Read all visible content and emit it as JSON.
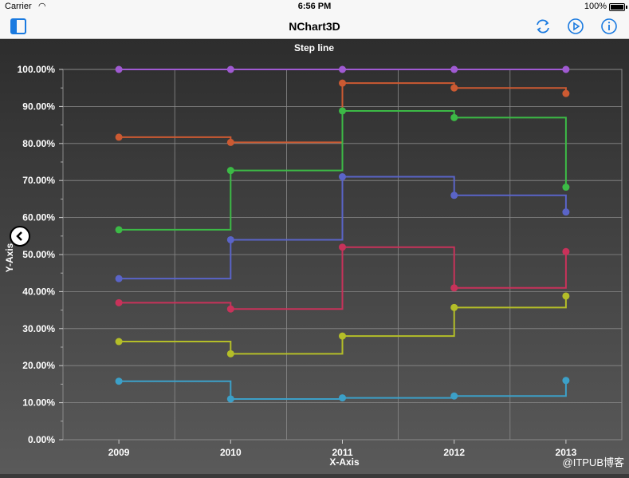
{
  "status_bar": {
    "carrier": "Carrier",
    "time": "6:56 PM",
    "battery": "100%"
  },
  "nav_bar": {
    "title": "NChart3D",
    "accent_color": "#1a7ae0",
    "left_icon": "sidebar-toggle-icon",
    "right_icons": [
      "refresh-icon",
      "play-icon",
      "info-icon"
    ]
  },
  "watermark": "@ITPUB博客",
  "chart_data": {
    "type": "line",
    "style": "step",
    "title": "Step line",
    "xlabel": "X-Axis",
    "ylabel": "Y-Axis",
    "categories": [
      "2009",
      "2010",
      "2011",
      "2012",
      "2013"
    ],
    "ylim": [
      0,
      100
    ],
    "ytick_labels": [
      "0.00%",
      "10.00%",
      "20.00%",
      "30.00%",
      "40.00%",
      "50.00%",
      "60.00%",
      "70.00%",
      "80.00%",
      "90.00%",
      "100.00%"
    ],
    "grid": true,
    "series": [
      {
        "color": "#a05ad2",
        "values": [
          100,
          100,
          100,
          100,
          100
        ]
      },
      {
        "color": "#cc5a32",
        "values": [
          81.7,
          80.3,
          96.3,
          95.0,
          93.5
        ]
      },
      {
        "color": "#3cba46",
        "values": [
          56.7,
          72.7,
          88.8,
          87.0,
          68.2
        ]
      },
      {
        "color": "#5a64c8",
        "values": [
          43.5,
          54.0,
          71.0,
          66.0,
          61.5
        ]
      },
      {
        "color": "#c8325a",
        "values": [
          37.0,
          35.3,
          52.0,
          41.0,
          50.8
        ]
      },
      {
        "color": "#b4be28",
        "values": [
          26.5,
          23.2,
          28.0,
          35.7,
          38.8
        ]
      },
      {
        "color": "#3ca0c8",
        "values": [
          15.8,
          11.0,
          11.3,
          11.8,
          16.0
        ]
      }
    ]
  }
}
